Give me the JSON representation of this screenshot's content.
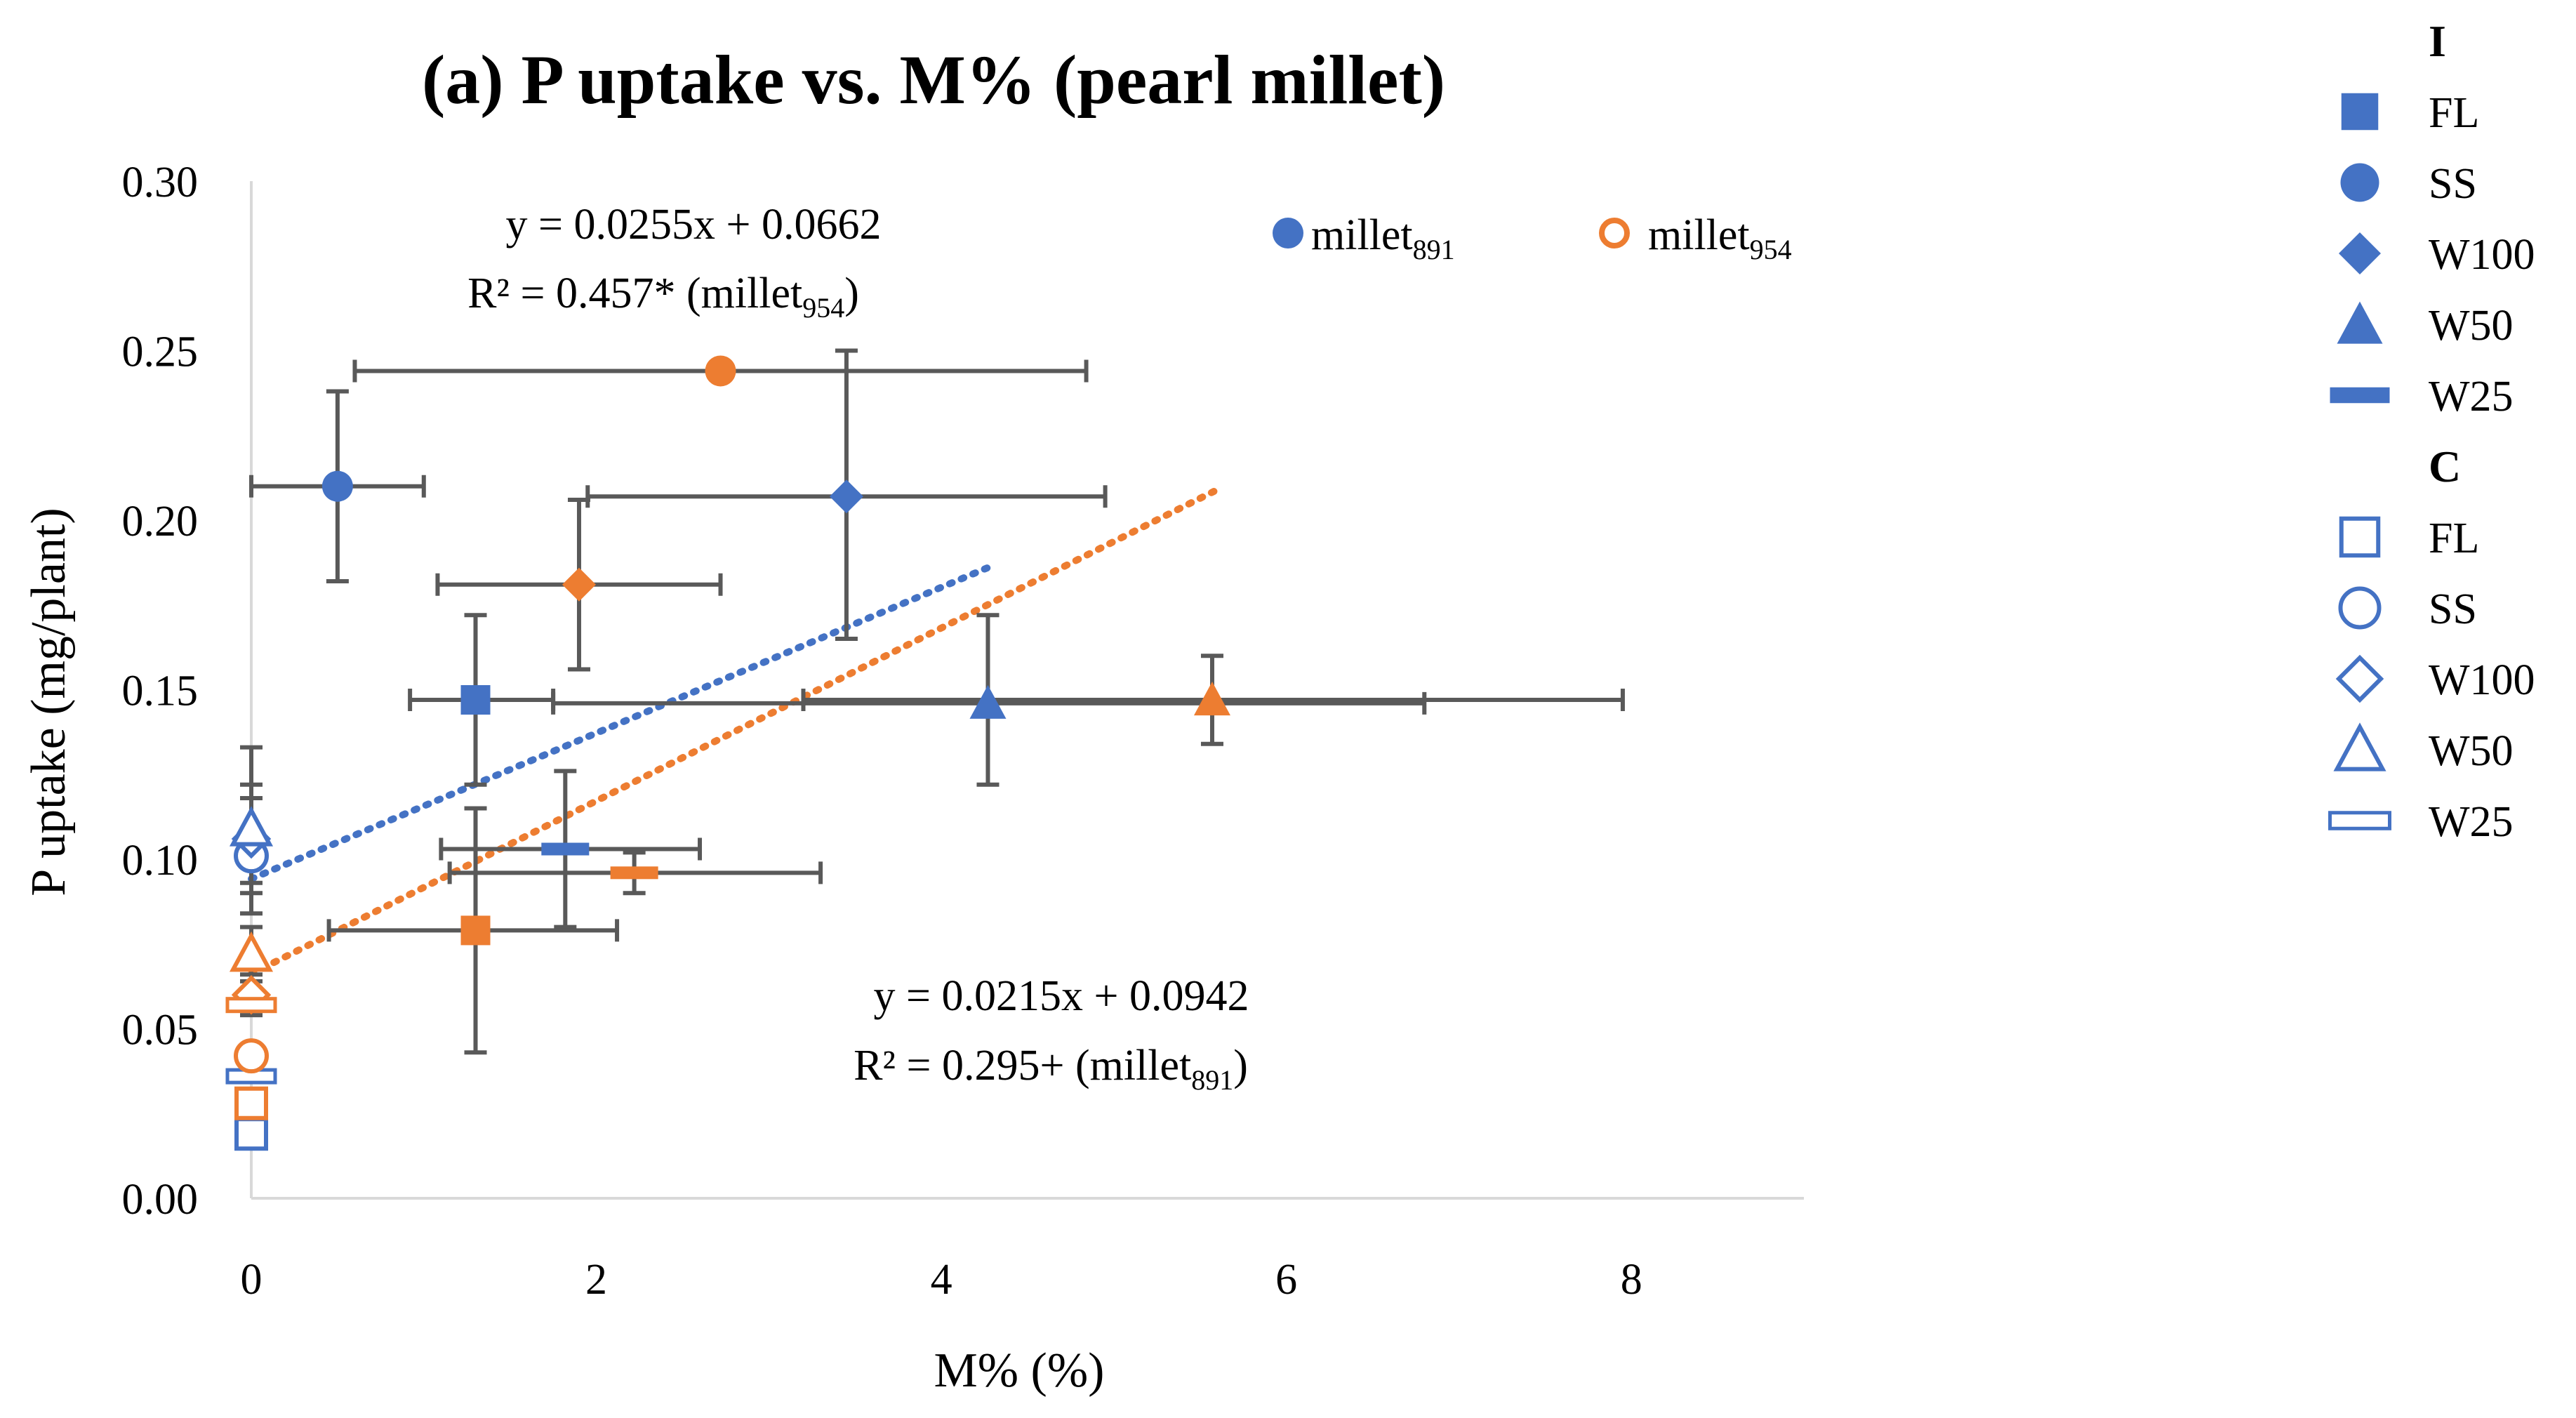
{
  "colors": {
    "millet891": "#4472C4",
    "millet954": "#ED7D31",
    "errorbar": "#595959",
    "axis": "#D9D9D9",
    "text": "#000000"
  },
  "chart_data": {
    "type": "scatter",
    "title": "(a) P uptake vs. M% (pearl millet)",
    "xlabel": "M% (%)",
    "ylabel": "P uptake (mg/plant)",
    "xlim": [
      0,
      9
    ],
    "ylim": [
      0,
      0.3
    ],
    "xticks": [
      {
        "value": 0,
        "label": "0"
      },
      {
        "value": 2,
        "label": "2"
      },
      {
        "value": 4,
        "label": "4"
      },
      {
        "value": 6,
        "label": "6"
      },
      {
        "value": 8,
        "label": "8"
      }
    ],
    "yticks": [
      {
        "value": 0,
        "label": "0.00"
      },
      {
        "value": 0.05,
        "label": "0.05"
      },
      {
        "value": 0.1,
        "label": "0.10"
      },
      {
        "value": 0.15,
        "label": "0.15"
      },
      {
        "value": 0.2,
        "label": "0.20"
      },
      {
        "value": 0.25,
        "label": "0.25"
      },
      {
        "value": 0.3,
        "label": "0.30"
      }
    ],
    "series": [
      {
        "name": "millet891",
        "legend_base": "millet",
        "legend_sub": "891",
        "color": "#4472C4",
        "points": [
          {
            "treatment": "I",
            "shape": "square",
            "x": 1.3,
            "y": 0.147,
            "xerr": [
              0.92,
              1.75
            ],
            "yerr": [
              0.122,
              0.172
            ]
          },
          {
            "treatment": "I",
            "shape": "circle",
            "x": 0.5,
            "y": 0.21,
            "xerr": [
              0.0,
              1.0
            ],
            "yerr": [
              0.182,
              0.238
            ]
          },
          {
            "treatment": "I",
            "shape": "diamond",
            "x": 3.45,
            "y": 0.207,
            "xerr": [
              1.95,
              4.95
            ],
            "yerr": [
              0.165,
              0.25
            ]
          },
          {
            "treatment": "I",
            "shape": "triangle",
            "x": 4.27,
            "y": 0.146,
            "xerr": [
              1.75,
              6.8
            ],
            "yerr": [
              0.122,
              0.172
            ]
          },
          {
            "treatment": "I",
            "shape": "dash",
            "x": 1.82,
            "y": 0.103,
            "xerr": [
              1.1,
              2.6
            ],
            "yerr": [
              0.08,
              0.126
            ]
          },
          {
            "treatment": "C",
            "shape": "square",
            "x": 0,
            "y": 0.019,
            "xerr": [
              0,
              0
            ],
            "yerr": [
              0.019,
              0.019
            ]
          },
          {
            "treatment": "C",
            "shape": "circle",
            "x": 0,
            "y": 0.101,
            "xerr": [
              0,
              0
            ],
            "yerr": [
              0.084,
              0.118
            ]
          },
          {
            "treatment": "C",
            "shape": "diamond",
            "x": 0,
            "y": 0.106,
            "xerr": [
              0,
              0
            ],
            "yerr": [
              0.09,
              0.122
            ]
          },
          {
            "treatment": "C",
            "shape": "triangle",
            "x": 0,
            "y": 0.109,
            "xerr": [
              0,
              0
            ],
            "yerr": [
              0.093,
              0.133
            ]
          },
          {
            "treatment": "C",
            "shape": "dash",
            "x": 0,
            "y": 0.036,
            "xerr": [
              0,
              0
            ],
            "yerr": [
              0.036,
              0.036
            ]
          }
        ],
        "trendline": {
          "x0": 0,
          "x1": 4.3,
          "slope": 0.0215,
          "intercept": 0.0942
        }
      },
      {
        "name": "millet954",
        "legend_base": "millet",
        "legend_sub": "954",
        "color": "#ED7D31",
        "points": [
          {
            "treatment": "I",
            "shape": "square",
            "x": 1.3,
            "y": 0.079,
            "xerr": [
              0.45,
              2.12
            ],
            "yerr": [
              0.043,
              0.115
            ]
          },
          {
            "treatment": "I",
            "shape": "circle",
            "x": 2.72,
            "y": 0.244,
            "xerr": [
              0.6,
              4.84
            ],
            "yerr": [
              0.244,
              0.244
            ]
          },
          {
            "treatment": "I",
            "shape": "diamond",
            "x": 1.9,
            "y": 0.181,
            "xerr": [
              1.08,
              2.72
            ],
            "yerr": [
              0.156,
              0.206
            ]
          },
          {
            "treatment": "I",
            "shape": "triangle",
            "x": 5.57,
            "y": 0.147,
            "xerr": [
              3.2,
              7.95
            ],
            "yerr": [
              0.134,
              0.16
            ]
          },
          {
            "treatment": "I",
            "shape": "dash",
            "x": 2.22,
            "y": 0.096,
            "xerr": [
              1.15,
              3.3
            ],
            "yerr": [
              0.09,
              0.102
            ]
          },
          {
            "treatment": "C",
            "shape": "square",
            "x": 0,
            "y": 0.028,
            "xerr": [
              0,
              0
            ],
            "yerr": [
              0.028,
              0.028
            ]
          },
          {
            "treatment": "C",
            "shape": "circle",
            "x": 0,
            "y": 0.042,
            "xerr": [
              0,
              0
            ],
            "yerr": [
              0.042,
              0.042
            ]
          },
          {
            "treatment": "C",
            "shape": "diamond",
            "x": 0,
            "y": 0.06,
            "xerr": [
              0,
              0
            ],
            "yerr": [
              0.054,
              0.066
            ]
          },
          {
            "treatment": "C",
            "shape": "triangle",
            "x": 0,
            "y": 0.072,
            "xerr": [
              0,
              0
            ],
            "yerr": [
              0.064,
              0.08
            ]
          },
          {
            "treatment": "C",
            "shape": "dash",
            "x": 0,
            "y": 0.057,
            "xerr": [
              0,
              0
            ],
            "yerr": [
              0.057,
              0.057
            ]
          }
        ],
        "trendline": {
          "x0": 0,
          "x1": 5.6,
          "slope": 0.0255,
          "intercept": 0.0662
        }
      }
    ],
    "annotations": [
      {
        "id": "eq954",
        "line1": "y = 0.0255x + 0.0662",
        "line2_main": "R² = 0.457* (millet",
        "line2_sub": "954",
        "line2_end": ")"
      },
      {
        "id": "eq891",
        "line1": "y = 0.0215x + 0.0942",
        "line2_main": "R² = 0.295+ (millet",
        "line2_sub": "891",
        "line2_end": ")"
      }
    ],
    "legend": {
      "placement": "top-right",
      "groups": [
        {
          "heading": "I",
          "filled": true,
          "items": [
            {
              "label": "FL",
              "shape": "square"
            },
            {
              "label": "SS",
              "shape": "circle"
            },
            {
              "label": "W100",
              "shape": "diamond"
            },
            {
              "label": "W50",
              "shape": "triangle"
            },
            {
              "label": "W25",
              "shape": "dash"
            }
          ]
        },
        {
          "heading": "C",
          "filled": false,
          "items": [
            {
              "label": "FL",
              "shape": "square"
            },
            {
              "label": "SS",
              "shape": "circle"
            },
            {
              "label": "W100",
              "shape": "diamond"
            },
            {
              "label": "W50",
              "shape": "triangle"
            },
            {
              "label": "W25",
              "shape": "dash"
            }
          ]
        }
      ]
    }
  }
}
